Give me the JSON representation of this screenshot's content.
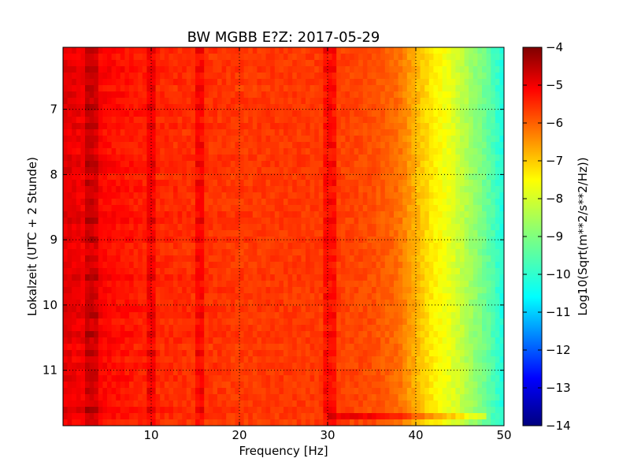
{
  "chart_data": {
    "type": "heatmap",
    "title": "BW MGBB E?Z: 2017-05-29",
    "xlabel": "Frequency [Hz]",
    "ylabel": "Lokalzeit (UTC + 2 Stunde)",
    "xlim": [
      0,
      50
    ],
    "ylim": [
      11.85,
      6.05
    ],
    "x_ticks": [
      10,
      20,
      30,
      40,
      50
    ],
    "y_ticks": [
      7,
      8,
      9,
      10,
      11
    ],
    "grid": true,
    "colormap": "jet",
    "colorbar": {
      "label": "Log10(Sqrt(m**2/s**2/Hz))",
      "range": [
        -14,
        -4
      ],
      "ticks": [
        -4,
        -5,
        -6,
        -7,
        -8,
        -9,
        -10,
        -11,
        -12,
        -13,
        -14
      ]
    },
    "value_profile": {
      "frequency_hz": [
        0,
        5,
        10,
        15,
        20,
        25,
        30,
        35,
        38,
        40,
        42,
        44,
        46,
        48,
        50
      ],
      "level": [
        -5.0,
        -5.3,
        -5.6,
        -5.7,
        -5.8,
        -5.8,
        -5.8,
        -6.0,
        -6.3,
        -7.0,
        -7.6,
        -8.0,
        -8.6,
        -9.2,
        -10.0
      ]
    },
    "strong_bands_hz": [
      3.3,
      10,
      15.5,
      30.2
    ],
    "strong_row_time": 11.7
  }
}
